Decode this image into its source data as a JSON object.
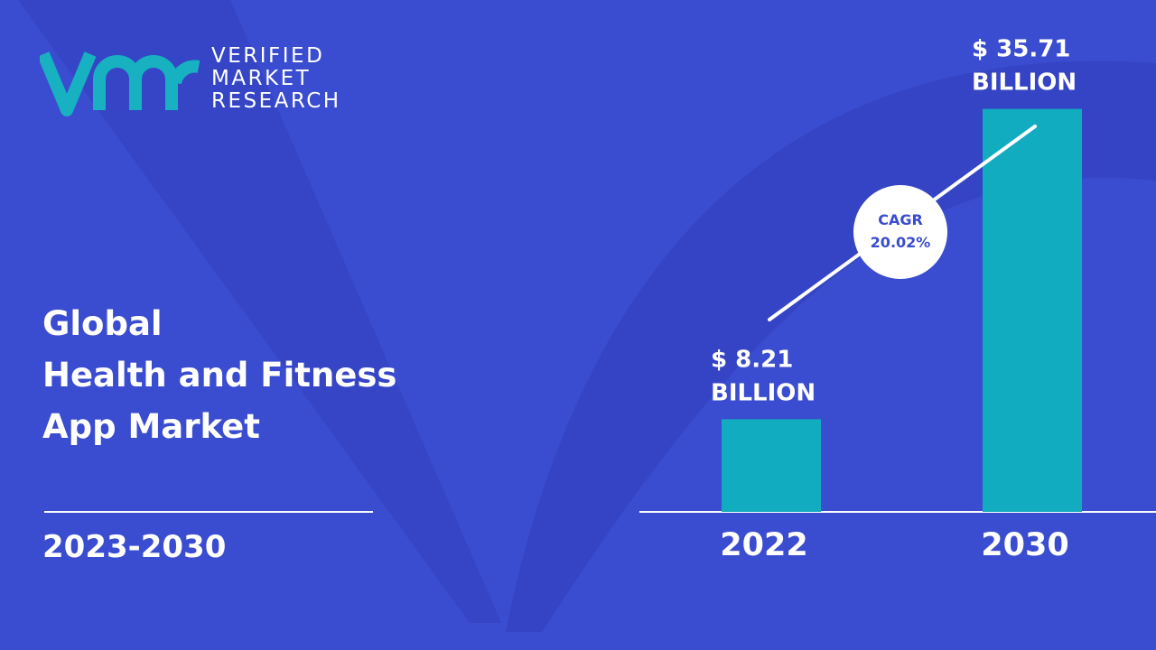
{
  "brand": {
    "line1": "VERIFIED",
    "line2": "MARKET",
    "line3": "RESEARCH"
  },
  "title": {
    "line1": "Global",
    "line2": "Health and Fitness",
    "line3": "App Market"
  },
  "period": "2023-2030",
  "colors": {
    "background": "#3a4ccf",
    "bar": "#12acc0",
    "logo": "#17b1c1",
    "text": "#ffffff",
    "cagr_text": "#3a4ccf"
  },
  "chart_data": {
    "type": "bar",
    "categories": [
      "2022",
      "2030"
    ],
    "values": [
      8.21,
      35.71
    ],
    "value_labels": [
      [
        "$ 8.21",
        "BILLION"
      ],
      [
        "$ 35.71",
        "BILLION"
      ]
    ],
    "unit": "Billion USD",
    "cagr": {
      "label": "CAGR",
      "value": "20.02%"
    },
    "ylim": [
      0,
      40
    ],
    "grid": false,
    "legend": "none"
  }
}
